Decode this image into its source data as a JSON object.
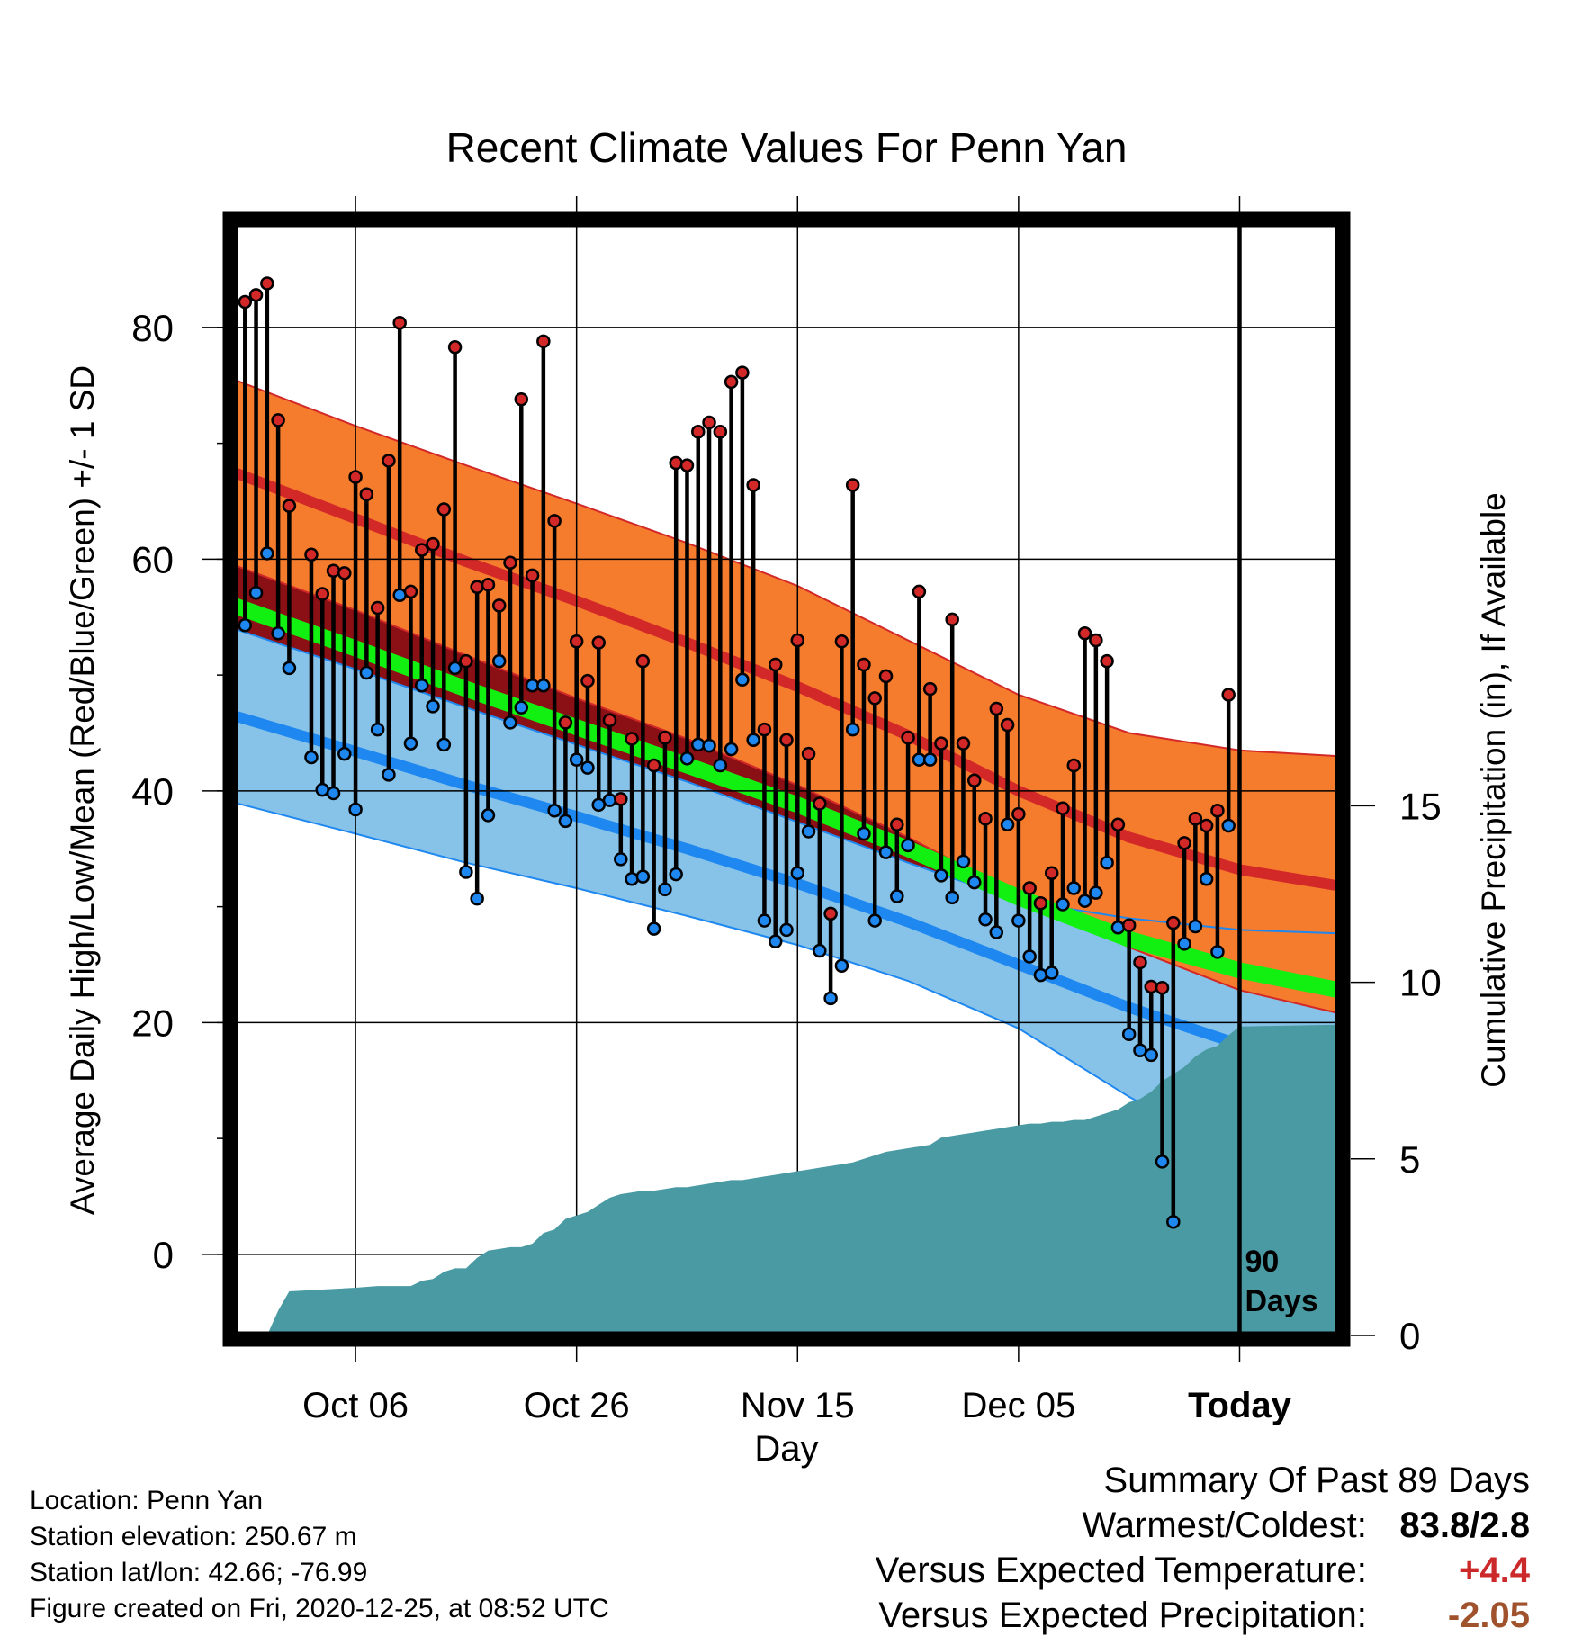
{
  "chart_data": {
    "type": "line",
    "title": "Recent Climate Values For Penn Yan",
    "xlabel": "Day",
    "ylabel": "Average Daily High/Low/Mean (Red/Blue/Green) +/- 1 SD",
    "y2label": "Cumulative Precipitation (in), If Available",
    "xlim": [
      -11,
      89
    ],
    "ylim": [
      -7,
      89
    ],
    "y2lim": [
      0,
      31.5
    ],
    "x_ticks": [
      {
        "x": 0,
        "label": "Oct 06"
      },
      {
        "x": 20,
        "label": "Oct 26"
      },
      {
        "x": 40,
        "label": "Nov 15"
      },
      {
        "x": 60,
        "label": "Dec 05"
      },
      {
        "x": 80,
        "label": "Today"
      }
    ],
    "y_ticks": [
      0,
      20,
      40,
      60,
      80
    ],
    "y2_ticks": [
      0,
      5,
      10,
      15
    ],
    "grid": true,
    "today_marker": {
      "x": 80,
      "label_line1": "90",
      "label_line2": "Days"
    },
    "normal_high": {
      "x": [
        -11,
        0,
        10,
        20,
        30,
        40,
        50,
        60,
        70,
        80,
        89
      ],
      "mean": [
        67.5,
        63.5,
        59.8,
        56.4,
        52.8,
        49.0,
        44.8,
        40.0,
        36.0,
        33.2,
        31.8
      ],
      "upper": [
        75.5,
        71.5,
        68.1,
        64.8,
        61.4,
        57.7,
        53.0,
        48.3,
        45.0,
        43.5,
        43.0
      ],
      "lower": [
        59.5,
        55.6,
        51.7,
        48.0,
        44.5,
        40.5,
        36.0,
        31.0,
        26.5,
        22.8,
        20.8
      ]
    },
    "normal_low": {
      "x": [
        -11,
        0,
        10,
        20,
        30,
        40,
        50,
        60,
        70,
        80,
        89
      ],
      "mean": [
        46.5,
        43.4,
        40.5,
        37.8,
        35.0,
        32.0,
        28.7,
        25.0,
        21.3,
        18.1,
        15.8
      ],
      "upper": [
        54.0,
        50.5,
        47.2,
        44.0,
        40.8,
        37.3,
        33.8,
        30.5,
        29.0,
        28.0,
        27.7
      ]
    },
    "normal_mean": {
      "x": [
        -11,
        0,
        10,
        20,
        30,
        40,
        50,
        60,
        70,
        80,
        89
      ],
      "values": [
        56.0,
        52.3,
        48.8,
        45.5,
        42.2,
        38.8,
        35.0,
        30.8,
        27.2,
        24.5,
        22.8
      ]
    },
    "daily": {
      "x_start": -10,
      "high": [
        82.2,
        82.8,
        83.8,
        72.0,
        64.6,
        null,
        60.4,
        57.0,
        59.0,
        58.8,
        67.1,
        65.6,
        55.8,
        68.5,
        80.4,
        57.2,
        60.8,
        61.3,
        64.3,
        78.3,
        51.2,
        57.6,
        57.8,
        56.0,
        59.7,
        73.8,
        58.6,
        78.8,
        63.3,
        45.9,
        52.9,
        49.5,
        52.8,
        46.1,
        39.3,
        44.5,
        51.2,
        42.2,
        44.6,
        68.3,
        68.1,
        71.0,
        71.8,
        71.0,
        75.3,
        76.1,
        66.4,
        45.3,
        50.9,
        44.4,
        53.0,
        43.2,
        38.9,
        29.4,
        52.9,
        66.4,
        50.9,
        48.0,
        49.9,
        37.1,
        44.6,
        57.2,
        48.8,
        44.1,
        54.8,
        44.1,
        40.9,
        37.6,
        47.1,
        45.7,
        38.0,
        31.6,
        30.3,
        32.9,
        38.5,
        42.2,
        53.6,
        53.0,
        51.2,
        37.1,
        28.4,
        25.2,
        23.1,
        23.0,
        28.6,
        35.5,
        37.6,
        37.0,
        38.3,
        48.3
      ],
      "low": [
        54.3,
        57.1,
        60.5,
        53.6,
        50.6,
        null,
        42.9,
        40.1,
        39.8,
        43.2,
        38.4,
        50.2,
        45.3,
        41.4,
        56.9,
        44.1,
        49.1,
        47.3,
        44.0,
        50.6,
        33.0,
        30.7,
        37.9,
        51.2,
        45.9,
        47.2,
        49.1,
        49.1,
        38.3,
        37.4,
        42.7,
        42.0,
        38.8,
        39.2,
        34.1,
        32.4,
        32.6,
        28.1,
        31.5,
        32.8,
        42.8,
        44.0,
        43.9,
        42.2,
        43.6,
        49.6,
        44.4,
        28.8,
        27.0,
        28.0,
        32.9,
        36.5,
        26.2,
        22.1,
        24.9,
        45.3,
        36.3,
        28.8,
        34.7,
        30.9,
        35.3,
        42.7,
        42.7,
        32.7,
        30.8,
        33.9,
        32.1,
        28.9,
        27.8,
        37.1,
        28.8,
        25.7,
        24.1,
        24.3,
        30.2,
        31.6,
        30.5,
        31.2,
        33.8,
        28.2,
        19.0,
        17.6,
        17.2,
        8.0,
        2.8,
        26.8,
        28.3,
        32.4,
        26.1,
        37.0
      ]
    },
    "cumulative_precip": {
      "x": [
        -8,
        -7,
        -6,
        0,
        2,
        5,
        6,
        7,
        8,
        9,
        10,
        11,
        12,
        13,
        14,
        15,
        16,
        17,
        18,
        19,
        20,
        21,
        22,
        23,
        24,
        25,
        26,
        27,
        28,
        29,
        30,
        31,
        32,
        33,
        34,
        35,
        36,
        37,
        38,
        39,
        40,
        41,
        42,
        43,
        44,
        45,
        46,
        47,
        48,
        49,
        50,
        51,
        52,
        53,
        54,
        55,
        56,
        57,
        58,
        59,
        60,
        61,
        62,
        63,
        64,
        65,
        66,
        67,
        68,
        69,
        70,
        71,
        72,
        73,
        74,
        75,
        76,
        77,
        78,
        79,
        80,
        89
      ],
      "values": [
        0.0,
        0.7,
        1.25,
        1.35,
        1.4,
        1.4,
        1.55,
        1.6,
        1.8,
        1.9,
        1.9,
        2.2,
        2.4,
        2.45,
        2.5,
        2.5,
        2.6,
        2.9,
        3.0,
        3.3,
        3.4,
        3.5,
        3.7,
        3.9,
        4.0,
        4.05,
        4.1,
        4.1,
        4.15,
        4.2,
        4.2,
        4.25,
        4.3,
        4.35,
        4.4,
        4.4,
        4.45,
        4.5,
        4.55,
        4.6,
        4.65,
        4.7,
        4.75,
        4.8,
        4.85,
        4.9,
        5.0,
        5.1,
        5.2,
        5.25,
        5.3,
        5.35,
        5.4,
        5.6,
        5.65,
        5.7,
        5.75,
        5.8,
        5.85,
        5.9,
        5.95,
        6.0,
        6.0,
        6.05,
        6.05,
        6.1,
        6.1,
        6.2,
        6.3,
        6.4,
        6.6,
        6.7,
        6.9,
        7.2,
        7.4,
        7.6,
        7.9,
        8.1,
        8.2,
        8.5,
        8.75,
        8.8
      ]
    },
    "colors": {
      "high_band": "#f57b2d",
      "high_mean": "#d32828",
      "high_band_edge": "#d32828",
      "low_band": "#87c2e8",
      "low_mean": "#1e88f0",
      "low_band_edge": "#1e88f0",
      "mean_line": "#12f012",
      "overlap": "#8b1015",
      "precip": "#4a9aa3",
      "high_dot": "#d32828",
      "low_dot": "#1e88f0"
    }
  },
  "footer": {
    "location": "Location: Penn Yan",
    "elevation": "Station elevation: 250.67 m",
    "latlon": "Station lat/lon: 42.66; -76.99",
    "created": "Figure created on Fri, 2020-12-25, at 08:52 UTC"
  },
  "summary": {
    "title": "Summary Of Past 89 Days",
    "warmest_label": "Warmest/Coldest:",
    "warmest_value": "83.8/2.8",
    "temp_label": "Versus Expected Temperature:",
    "temp_value": "+4.4",
    "temp_color": "#cc2a2a",
    "precip_label": "Versus Expected Precipitation:",
    "precip_value": "-2.05",
    "precip_color": "#a0522d"
  }
}
